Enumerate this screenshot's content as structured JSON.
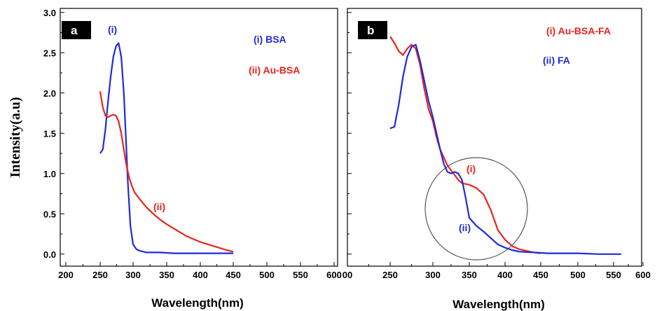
{
  "colors": {
    "blue": "#1f2bd6",
    "red": "#e8231d",
    "axis": "#000000",
    "circle": "#555555"
  },
  "chart_data": [
    {
      "type": "line",
      "panel_label": "a",
      "xlabel": "Wavelength(nm)",
      "ylabel": "Intensity(a.u)",
      "xlim": [
        200,
        600
      ],
      "ylim": [
        -0.15,
        3.05
      ],
      "xticks": [
        "200",
        "250",
        "300",
        "350",
        "400",
        "450",
        "500",
        "550",
        "600"
      ],
      "yticks": [
        "0.0",
        "0.5",
        "1.0",
        "1.5",
        "2.0",
        "2.5",
        "3.0"
      ],
      "grid": false,
      "legend_position": "top-right",
      "series": [
        {
          "name": "(i) BSA",
          "label": "(i)",
          "color": "#1f2bd6",
          "x": [
            250,
            254,
            258,
            262,
            266,
            270,
            274,
            278,
            282,
            286,
            289,
            292,
            296,
            300,
            305,
            310,
            320,
            340,
            360,
            380,
            400,
            420,
            450
          ],
          "y": [
            1.25,
            1.3,
            1.55,
            1.9,
            2.2,
            2.45,
            2.58,
            2.62,
            2.45,
            2.0,
            1.45,
            0.9,
            0.35,
            0.12,
            0.06,
            0.04,
            0.02,
            0.02,
            0.01,
            0.01,
            0.01,
            0.01,
            0.01
          ]
        },
        {
          "name": "(ii) Au-BSA",
          "label": "(ii)",
          "color": "#e8231d",
          "x": [
            250,
            254,
            258,
            262,
            266,
            270,
            274,
            278,
            282,
            286,
            290,
            294,
            298,
            302,
            310,
            320,
            330,
            340,
            350,
            360,
            380,
            400,
            420,
            440,
            450
          ],
          "y": [
            2.02,
            1.82,
            1.72,
            1.7,
            1.72,
            1.73,
            1.72,
            1.65,
            1.5,
            1.3,
            1.1,
            0.95,
            0.85,
            0.77,
            0.68,
            0.58,
            0.5,
            0.43,
            0.37,
            0.32,
            0.22,
            0.15,
            0.1,
            0.05,
            0.03
          ]
        }
      ]
    },
    {
      "type": "line",
      "panel_label": "b",
      "xlabel": "Wavelength(nm)",
      "ylabel": "",
      "xlim": [
        200,
        600
      ],
      "ylim": [
        -0.15,
        3.05
      ],
      "xticks": [
        "00",
        "250",
        "300",
        "350",
        "400",
        "450",
        "500",
        "550",
        "600"
      ],
      "yticks": [],
      "grid": false,
      "legend_position": "top-right",
      "annotation": {
        "shape": "circle",
        "center_x": 365,
        "center_y": 0.45,
        "note": "highlight"
      },
      "series": [
        {
          "name": "(i) Au-BSA-FA",
          "label": "(i)",
          "color": "#e8231d",
          "label_at": [
            370,
            1.0
          ],
          "x": [
            250,
            255,
            260,
            265,
            270,
            275,
            280,
            285,
            290,
            295,
            300,
            305,
            310,
            320,
            330,
            335,
            340,
            345,
            350,
            360,
            370,
            380,
            390,
            400,
            410,
            420,
            430,
            440,
            450
          ],
          "y": [
            2.7,
            2.62,
            2.52,
            2.47,
            2.55,
            2.6,
            2.55,
            2.35,
            2.05,
            1.8,
            1.65,
            1.45,
            1.3,
            1.1,
            0.98,
            0.92,
            0.88,
            0.87,
            0.86,
            0.82,
            0.74,
            0.55,
            0.3,
            0.18,
            0.1,
            0.06,
            0.04,
            0.02,
            0.01
          ]
        },
        {
          "name": "(ii) FA",
          "label": "(ii)",
          "color": "#1f2bd6",
          "label_at": [
            360,
            0.28
          ],
          "x": [
            250,
            255,
            260,
            265,
            270,
            275,
            280,
            285,
            290,
            295,
            300,
            305,
            310,
            315,
            320,
            325,
            330,
            335,
            340,
            345,
            350,
            360,
            370,
            380,
            390,
            400,
            410,
            420,
            440,
            460,
            480,
            500,
            530,
            563
          ],
          "y": [
            1.56,
            1.58,
            1.85,
            2.2,
            2.45,
            2.57,
            2.6,
            2.4,
            2.15,
            1.9,
            1.7,
            1.5,
            1.3,
            1.12,
            1.02,
            1.0,
            1.02,
            1.0,
            0.92,
            0.7,
            0.45,
            0.35,
            0.28,
            0.2,
            0.12,
            0.08,
            0.05,
            0.03,
            0.02,
            0.01,
            0.01,
            0.01,
            0.0,
            0.0
          ]
        }
      ]
    }
  ]
}
